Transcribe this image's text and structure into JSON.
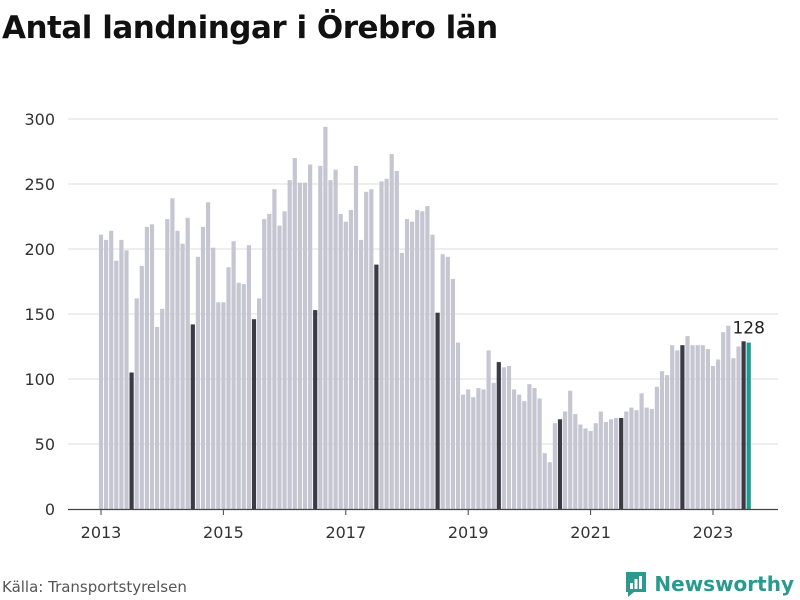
{
  "title": "Antal landningar i Örebro län",
  "source": "Källa: Transportstyrelsen",
  "brand": {
    "name": "Newsworthy"
  },
  "colors": {
    "bar": "#c6c6d2",
    "highlight": "#3b3a45",
    "latest": "#1f9a8e",
    "grid": "#dddddd",
    "axis": "#444444"
  },
  "chart_data": {
    "type": "bar",
    "title": "Antal landningar i Örebro län",
    "xlabel": "",
    "ylabel": "",
    "ylim": [
      0,
      300
    ],
    "yticks": [
      0,
      50,
      100,
      150,
      200,
      250,
      300
    ],
    "xtick_labels": [
      "2013",
      "2015",
      "2017",
      "2019",
      "2021",
      "2023"
    ],
    "grid": true,
    "start": "2013-01",
    "end": "2023-07",
    "annotation": "128",
    "series": [
      {
        "values": [
          211,
          207,
          214,
          191,
          207,
          199,
          105,
          162,
          187,
          217,
          219,
          140,
          154,
          223,
          239,
          214,
          204,
          224,
          142,
          194,
          217,
          236,
          201,
          159,
          159,
          186,
          206,
          174,
          173,
          203,
          146,
          162,
          223,
          227,
          246,
          218,
          229,
          253,
          270,
          251,
          251,
          265,
          153,
          264,
          294,
          253,
          261,
          227,
          221,
          230,
          264,
          207,
          244,
          246,
          188,
          252,
          254,
          273,
          260,
          197,
          223,
          221,
          230,
          229,
          233,
          211,
          151,
          196,
          194,
          177,
          128,
          88,
          92,
          86,
          93,
          92,
          122,
          97,
          113,
          109,
          110,
          92,
          88,
          83,
          96,
          93,
          85,
          43,
          36,
          66,
          69,
          75,
          91,
          73,
          65,
          62,
          60,
          66,
          75,
          67,
          69,
          70,
          70,
          75,
          78,
          76,
          89,
          78,
          77,
          94,
          106,
          103,
          126,
          122,
          126,
          133,
          126,
          126,
          126,
          123,
          110,
          115,
          136,
          141,
          116,
          125,
          129,
          128
        ]
      }
    ]
  }
}
